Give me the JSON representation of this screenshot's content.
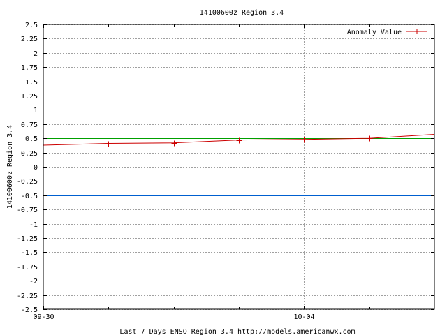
{
  "chart_data": {
    "type": "line",
    "title": "14100600z Region 3.4",
    "xlabel": "Last 7 Days ENSO Region 3.4 http://models.americanwx.com",
    "ylabel": "14100600z Region 3.4",
    "ylim": [
      -2.5,
      2.5
    ],
    "xlim": [
      "09-30 00:00",
      "10-06 00:00"
    ],
    "grid": true,
    "legend_position": "top-right",
    "yticks": [
      2.5,
      2.25,
      2,
      1.75,
      1.5,
      1.25,
      1,
      0.75,
      0.5,
      0.25,
      0,
      -0.25,
      -0.5,
      -0.75,
      -1,
      -1.25,
      -1.5,
      -1.75,
      -2,
      -2.25,
      -2.5
    ],
    "ytick_labels": [
      "2.5",
      "2.25",
      "2",
      "1.75",
      "1.5",
      "1.25",
      "1",
      "0.75",
      "0.5",
      "0.25",
      "0",
      "-0.25",
      "-0.5",
      "-0.75",
      "-1",
      "-1.25",
      "-1.5",
      "-1.75",
      "-2",
      "-2.25",
      "-2.5"
    ],
    "xticks": [
      "09-30 00:00",
      "10-04 00:00"
    ],
    "xtick_labels": [
      "09-30",
      "10-04"
    ],
    "series": [
      {
        "name": "Anomaly Value",
        "color": "#cc0000",
        "marker": "plus",
        "x": [
          "09-30 00:00",
          "10-01 00:00",
          "10-02 00:00",
          "10-03 00:00",
          "10-04 00:00",
          "10-05 00:00",
          "10-06 00:00"
        ],
        "y": [
          0.38,
          0.41,
          0.42,
          0.47,
          0.48,
          0.5,
          0.57
        ]
      }
    ],
    "reference_lines": [
      {
        "y": 0.5,
        "color": "#00a000"
      },
      {
        "y": -0.5,
        "color": "#0060d0"
      }
    ]
  }
}
